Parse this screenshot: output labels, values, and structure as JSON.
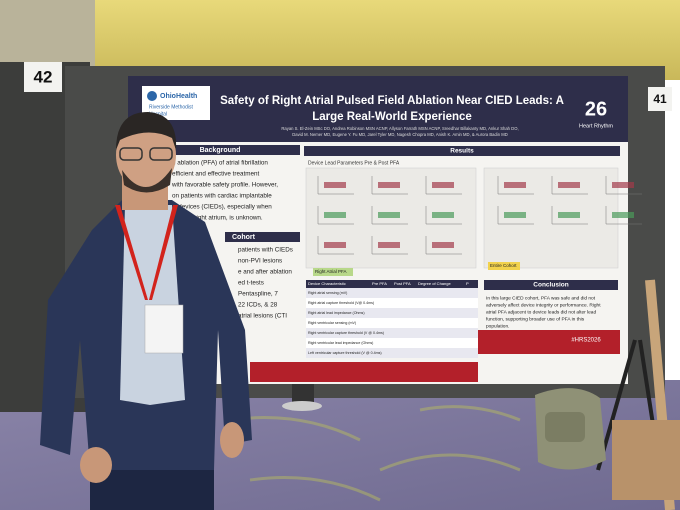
{
  "booths": {
    "left": "42",
    "right": "41"
  },
  "poster": {
    "logo": {
      "name": "OhioHealth",
      "hospital": [
        "Riverside Methodist",
        "Hospital"
      ]
    },
    "title": [
      "Safety of Right Atrial Pulsed Field Ablation Near CIED Leads: A",
      "Large Real-World Experience"
    ],
    "authors": [
      "Rayan S. El-Zein MSc DO, Andrea Robinson MSN ACNP, Allyson Farrath MSN ACNP, Sreedhar Billakanty MD, Ankur Shah DO,",
      "David M. Nemer MD, Eugene Y. Fu MD, Jarel Tyler MD, Nagesh Chopra MD, Anish K. Amin MD, & Aurora Badin MD"
    ],
    "badge": {
      "number": "26",
      "org": "Heart Rhythm"
    },
    "background": {
      "heading": "Background",
      "lines": [
        "d ablation (PFA) of atrial fibrillation",
        "efficient and effective treatment",
        "with favorable safety profile. However,",
        "on patients with cardiac implantable",
        "ic devices (CIEDs), especially when",
        "d in the right atrium, is unknown."
      ]
    },
    "cohort": {
      "heading": "Cohort",
      "lines": [
        "patients with CIEDs",
        "non-PVI lesions",
        "e and after ablation",
        "ed t-tests",
        "Pentaspline, 7",
        "22 ICDs, & 28",
        "atrial lesions (CTI"
      ]
    },
    "results": {
      "heading": "Results",
      "subheading": "Device Lead Parameters Pre & Post PFA",
      "left_label": "Right Atrial PFA",
      "right_label": "Entire Cohort",
      "table": {
        "header": [
          "Device Characteristic",
          "Pre PFA",
          "Post PFA",
          "Degree of Change",
          "P"
        ],
        "rows": [
          "Right atrial sensing (mV)",
          "Right atrial capture threshold (V@ 0.4ms)",
          "Right atrial lead impedance (Ohms)",
          "Right ventricular sensing (mV)",
          "Right ventricular capture threshold (V @ 0.4ms)",
          "Right ventricular lead impedance (Ohms)",
          "Left ventricular capture threshold (V @ 0.4ms)"
        ]
      }
    },
    "conclusion": {
      "heading": "Conclusion",
      "lines": [
        "In this large CIED cohort, PFA was safe and did not",
        "adversely affect device integrity or performance. Right",
        "atrial PFA adjacent to device leads did not alter lead",
        "function, supporting broader use of PFA in this",
        "population."
      ]
    },
    "hashtag": "#HRS2026"
  }
}
